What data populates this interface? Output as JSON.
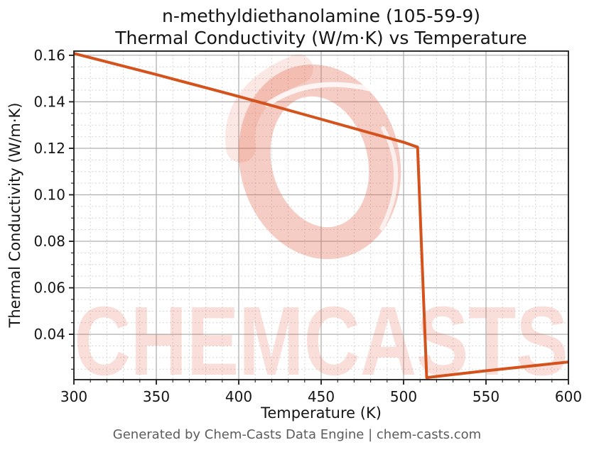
{
  "figure": {
    "title_line1": "n-methyldiethanolamine (105-59-9)",
    "title_line2": "Thermal Conductivity (W/m·K) vs Temperature"
  },
  "footer": {
    "text": "Generated by Chem-Casts Data Engine | chem-casts.com"
  },
  "watermark": {
    "text": "CHEMCASTS",
    "icon": "brush-ring-logo",
    "color": "#e25a40",
    "ring_opacity": 0.3,
    "text_opacity": 0.2
  },
  "chart_data": {
    "type": "line",
    "title": "n-methyldiethanolamine (105-59-9) Thermal Conductivity (W/m·K) vs Temperature",
    "xlabel": "Temperature (K)",
    "ylabel": "Thermal Conductivity (W/m·K)",
    "xlim": [
      300,
      600
    ],
    "ylim": [
      0.0205,
      0.1618
    ],
    "x_ticks": [
      300,
      350,
      400,
      450,
      500,
      550,
      600
    ],
    "x_tick_labels": [
      "300",
      "350",
      "400",
      "450",
      "500",
      "550",
      "600"
    ],
    "y_ticks": [
      0.04,
      0.06,
      0.08,
      0.1,
      0.12,
      0.14,
      0.16
    ],
    "y_tick_labels": [
      "0.04",
      "0.06",
      "0.08",
      "0.10",
      "0.12",
      "0.14",
      "0.16"
    ],
    "x_minor_step": 10,
    "y_minor_step": 0.005,
    "grid": {
      "major": true,
      "minor": true
    },
    "legend": null,
    "line_color": "#d4521c",
    "spine_color": "#1a1a1a",
    "major_grid_color": "#b0b0b0",
    "minor_grid_color": "#d6d6d6",
    "series": [
      {
        "name": "Thermal Conductivity",
        "points": [
          [
            300,
            0.1608
          ],
          [
            350,
            0.1517
          ],
          [
            400,
            0.1423
          ],
          [
            450,
            0.1325
          ],
          [
            500,
            0.1226
          ],
          [
            508.5,
            0.1205
          ],
          [
            514,
            0.0214
          ],
          [
            550,
            0.0243
          ],
          [
            600,
            0.0281
          ]
        ]
      }
    ]
  }
}
